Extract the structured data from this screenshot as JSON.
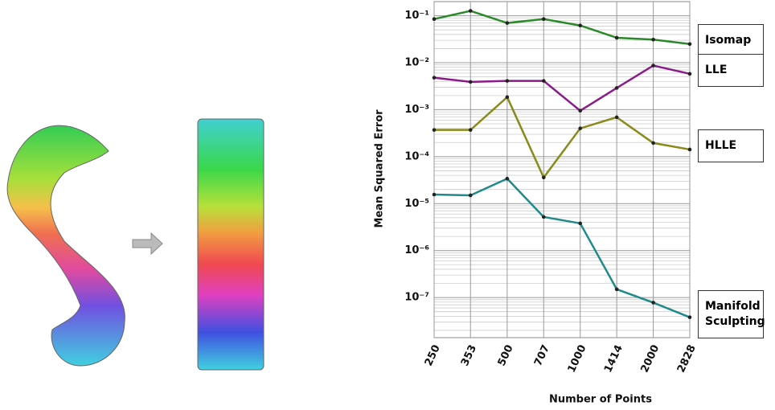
{
  "chart_data": {
    "type": "line",
    "ylabel": "Mean Squared Error",
    "xlabel": "Number of Points",
    "x": [
      250,
      353,
      500,
      707,
      1000,
      1414,
      2000,
      2828
    ],
    "xscale": "log",
    "yscale": "log",
    "xlim": [
      250,
      2828
    ],
    "xticks": [
      250,
      353,
      500,
      707,
      1000,
      1414,
      2000,
      2828
    ],
    "ylim": [
      1.4e-08,
      0.2
    ],
    "yticks": [
      {
        "value": 0.1,
        "label": "10⁻¹"
      },
      {
        "value": 0.01,
        "label": "10⁻²"
      },
      {
        "value": 0.001,
        "label": "10⁻³"
      },
      {
        "value": 0.0001,
        "label": "10⁻⁴"
      },
      {
        "value": 1e-05,
        "label": "10⁻⁵"
      },
      {
        "value": 1e-06,
        "label": "10⁻⁶"
      },
      {
        "value": 1e-07,
        "label": "10⁻⁷"
      }
    ],
    "grid": true,
    "minor_grid": true,
    "series": [
      {
        "name": "Isomap",
        "color": "#2a8a2a",
        "values": [
          0.085,
          0.127,
          0.07,
          0.085,
          0.062,
          0.034,
          0.031,
          0.025
        ]
      },
      {
        "name": "LLE",
        "color": "#8b1a8b",
        "values": [
          0.0048,
          0.0039,
          0.0041,
          0.0041,
          0.00095,
          0.0029,
          0.0087,
          0.0058
        ]
      },
      {
        "name": "HLLE",
        "color": "#8a8a1a",
        "values": [
          0.00037,
          0.00037,
          0.00185,
          3.6e-05,
          0.0004,
          0.00069,
          0.000195,
          0.000142
        ]
      },
      {
        "name": "Manifold Sculpting",
        "color": "#1f8a8a",
        "values": [
          1.56e-05,
          1.5e-05,
          3.4e-05,
          5.2e-06,
          3.8e-06,
          1.5e-07,
          7.8e-08,
          3.8e-08
        ]
      }
    ]
  }
}
